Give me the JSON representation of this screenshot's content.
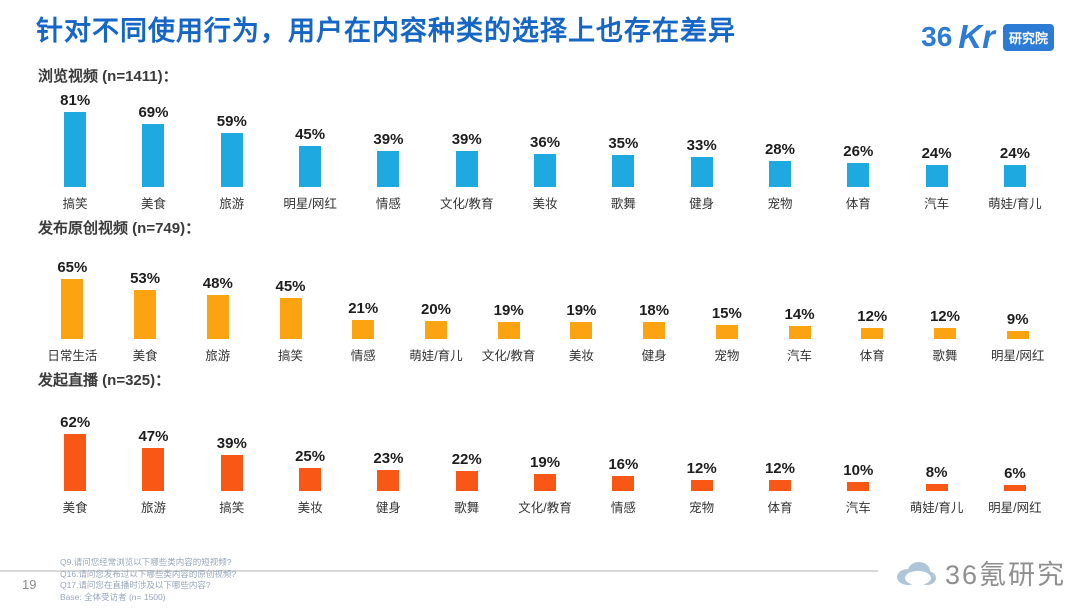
{
  "page": {
    "title": "针对不同使用行为，用户在内容种类的选择上也存在差异",
    "page_number": "19",
    "footer_notes": [
      "Q9.请问您经常浏览以下哪些类内容的短视频?",
      "Q16.请问您发布过以下哪些类内容的原创视频?",
      "Q17.请问您在直播时涉及以下哪些内容?",
      "Base: 全体受访者 (n= 1500)"
    ],
    "watermark": "36氪研究"
  },
  "logo": {
    "brand_number": "36",
    "brand_kr": "Kr",
    "badge": "研究院"
  },
  "chart_data": [
    {
      "type": "bar",
      "title": "浏览视频 (n=1411)：",
      "color": "#1FA9E1",
      "value_suffix": "%",
      "ylim": [
        0,
        100
      ],
      "categories": [
        "搞笑",
        "美食",
        "旅游",
        "明星/网红",
        "情感",
        "文化/教育",
        "美妆",
        "歌舞",
        "健身",
        "宠物",
        "体育",
        "汽车",
        "萌娃/育儿"
      ],
      "values": [
        81,
        69,
        59,
        45,
        39,
        39,
        36,
        35,
        33,
        28,
        26,
        24,
        24
      ]
    },
    {
      "type": "bar",
      "title": "发布原创视频 (n=749)：",
      "color": "#FCA311",
      "value_suffix": "%",
      "ylim": [
        0,
        100
      ],
      "categories": [
        "日常生活",
        "美食",
        "旅游",
        "搞笑",
        "情感",
        "萌娃/育儿",
        "文化/教育",
        "美妆",
        "健身",
        "宠物",
        "汽车",
        "体育",
        "歌舞",
        "明星/网红"
      ],
      "values": [
        65,
        53,
        48,
        45,
        21,
        20,
        19,
        19,
        18,
        15,
        14,
        12,
        12,
        9
      ]
    },
    {
      "type": "bar",
      "title": "发起直播 (n=325)：",
      "color": "#F95716",
      "value_suffix": "%",
      "ylim": [
        0,
        100
      ],
      "categories": [
        "美食",
        "旅游",
        "搞笑",
        "美妆",
        "健身",
        "歌舞",
        "文化/教育",
        "情感",
        "宠物",
        "体育",
        "汽车",
        "萌娃/育儿",
        "明星/网红"
      ],
      "values": [
        62,
        47,
        39,
        25,
        23,
        22,
        19,
        16,
        12,
        12,
        10,
        8,
        6
      ]
    }
  ]
}
